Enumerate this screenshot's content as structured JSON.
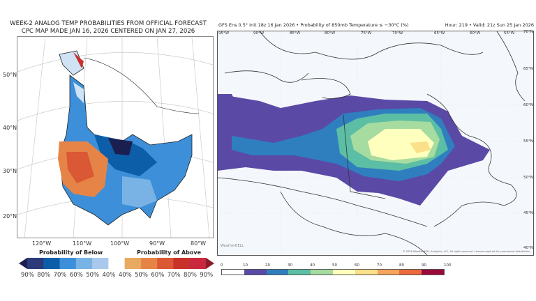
{
  "left_panel": {
    "title_line1": "WEEK-2 ANALOG TEMP PROBABILITIES FROM OFFICIAL FORECAST",
    "title_line2": "CPC MAP MADE JAN 16, 2026 CENTERED ON JAN 27, 2026",
    "lat_labels": [
      "50°N",
      "40°N",
      "30°N",
      "20°N"
    ],
    "lon_labels": [
      "120°W",
      "110°W",
      "100°W",
      "90°W",
      "80°W"
    ],
    "legend": {
      "below_label": "Probability of Below",
      "above_label": "Probability of Above",
      "ticks": [
        "90%",
        "80%",
        "70%",
        "60%",
        "50%",
        "40%",
        "40%",
        "50%",
        "60%",
        "70%",
        "80%",
        "90%"
      ],
      "colors": [
        "#1b1f4f",
        "#2b3a78",
        "#0d5ea8",
        "#3c8fd8",
        "#79b3e6",
        "#a8c9ec",
        "#ffffff",
        "#e8aa60",
        "#e68447",
        "#da5833",
        "#c8322a",
        "#c9283f",
        "#8a1c2a"
      ]
    }
  },
  "right_panel": {
    "header_left": "GFS Ens 0.5° Init 18z 16 Jan 2026 • Probability of 850mb Temperature ≤ −30°C (%)",
    "header_right": "Hour: 219 • Valid: 21z Sun 25 Jan 2026",
    "lon_labels": [
      "95°W",
      "90°W",
      "85°W",
      "80°W",
      "75°W",
      "70°W",
      "65°W",
      "60°W",
      "55°W"
    ],
    "lat_labels": [
      "70°N",
      "65°N",
      "60°N",
      "55°N",
      "50°N",
      "45°N",
      "40°N"
    ],
    "logo": "WeatherBELL",
    "copyright": "© 2026 WeatherBELL Analytics, LLC. All rights reserved. License required for commercial distribution.",
    "legend": {
      "ticks": [
        "0",
        "10",
        "20",
        "30",
        "40",
        "50",
        "60",
        "70",
        "80",
        "90",
        "100"
      ],
      "colors": [
        "#ffffff",
        "#5a4aa6",
        "#2f7fbf",
        "#5cbea4",
        "#a7dca0",
        "#ffffbe",
        "#fbe08a",
        "#f6a55a",
        "#ec6a3d",
        "#9c0a3c"
      ]
    }
  }
}
